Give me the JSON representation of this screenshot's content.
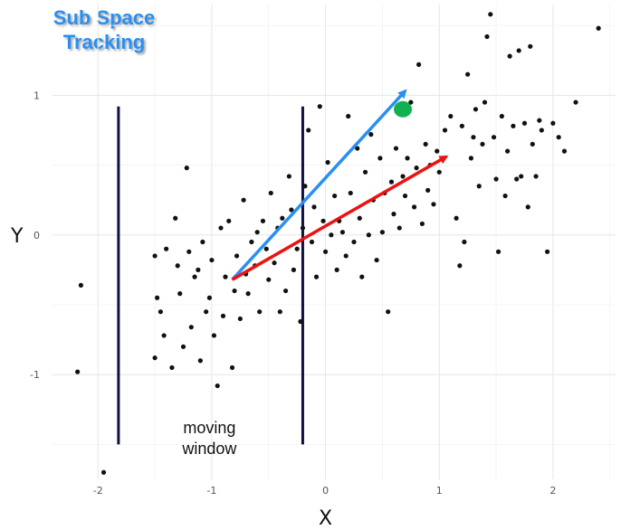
{
  "chart_data": {
    "type": "scatter",
    "title": "Sub Space Tracking",
    "xlabel": "X",
    "ylabel": "Y",
    "xlim": [
      -2.4,
      2.55
    ],
    "ylim": [
      -1.75,
      1.65
    ],
    "x_ticks": [
      -2,
      -1,
      0,
      1,
      2
    ],
    "y_ticks": [
      -1,
      0,
      1
    ],
    "grid": true,
    "annotation_text": "moving\nwindow",
    "colors": {
      "points": "#111111",
      "blue_arrow": "#2a8ff0",
      "red_arrow": "#ee1111",
      "green_point": "#11b050",
      "window_lines": "#101040",
      "title": "#2a8ff0"
    },
    "window_lines": [
      {
        "x": -1.82,
        "y_top": 0.92,
        "y_bottom": -1.5
      },
      {
        "x": -0.2,
        "y_top": 0.92,
        "y_bottom": -1.5
      }
    ],
    "arrows": [
      {
        "name": "blue_arrow",
        "from": [
          -0.82,
          -0.32
        ],
        "to": [
          0.7,
          1.03
        ]
      },
      {
        "name": "red_arrow",
        "from": [
          -0.82,
          -0.32
        ],
        "to": [
          1.06,
          0.56
        ]
      }
    ],
    "highlight_point": {
      "x": 0.68,
      "y": 0.9
    },
    "points": [
      [
        -2.15,
        -0.36
      ],
      [
        -2.18,
        -0.98
      ],
      [
        -1.95,
        -1.7
      ],
      [
        -1.5,
        -0.15
      ],
      [
        -1.48,
        -0.45
      ],
      [
        -1.5,
        -0.88
      ],
      [
        -1.45,
        -0.55
      ],
      [
        -1.42,
        -0.72
      ],
      [
        -1.4,
        -0.1
      ],
      [
        -1.35,
        -0.95
      ],
      [
        -1.32,
        0.12
      ],
      [
        -1.3,
        -0.22
      ],
      [
        -1.28,
        -0.42
      ],
      [
        -1.25,
        -0.8
      ],
      [
        -1.22,
        0.48
      ],
      [
        -1.2,
        -0.12
      ],
      [
        -1.18,
        -0.66
      ],
      [
        -1.15,
        -0.3
      ],
      [
        -1.12,
        -0.25
      ],
      [
        -1.1,
        -0.9
      ],
      [
        -1.08,
        -0.05
      ],
      [
        -1.05,
        -0.55
      ],
      [
        -1.02,
        -0.45
      ],
      [
        -1.0,
        -0.18
      ],
      [
        -0.98,
        -0.72
      ],
      [
        -0.95,
        -1.08
      ],
      [
        -0.92,
        0.05
      ],
      [
        -0.9,
        -0.58
      ],
      [
        -0.88,
        -0.3
      ],
      [
        -0.85,
        0.1
      ],
      [
        -0.82,
        -0.95
      ],
      [
        -0.8,
        -0.4
      ],
      [
        -0.78,
        -0.15
      ],
      [
        -0.75,
        -0.6
      ],
      [
        -0.72,
        0.25
      ],
      [
        -0.7,
        -0.28
      ],
      [
        -0.68,
        -0.42
      ],
      [
        -0.65,
        -0.05
      ],
      [
        -0.62,
        -0.22
      ],
      [
        -0.6,
        0.02
      ],
      [
        -0.58,
        -0.55
      ],
      [
        -0.55,
        0.1
      ],
      [
        -0.52,
        -0.1
      ],
      [
        -0.5,
        -0.32
      ],
      [
        -0.48,
        0.3
      ],
      [
        -0.45,
        -0.2
      ],
      [
        -0.42,
        0.05
      ],
      [
        -0.4,
        -0.55
      ],
      [
        -0.38,
        0.12
      ],
      [
        -0.35,
        -0.4
      ],
      [
        -0.32,
        0.42
      ],
      [
        -0.3,
        0.18
      ],
      [
        -0.28,
        -0.25
      ],
      [
        -0.25,
        -0.1
      ],
      [
        -0.22,
        -0.62
      ],
      [
        -0.2,
        0.05
      ],
      [
        -0.18,
        0.35
      ],
      [
        -0.15,
        0.75
      ],
      [
        -0.12,
        -0.05
      ],
      [
        -0.1,
        0.2
      ],
      [
        -0.08,
        -0.3
      ],
      [
        -0.05,
        0.92
      ],
      [
        -0.02,
        0.1
      ],
      [
        0.0,
        -0.12
      ],
      [
        0.02,
        0.52
      ],
      [
        0.05,
        0.0
      ],
      [
        0.08,
        0.28
      ],
      [
        0.1,
        -0.25
      ],
      [
        0.12,
        0.1
      ],
      [
        0.15,
        0.02
      ],
      [
        0.18,
        -0.15
      ],
      [
        0.2,
        0.85
      ],
      [
        0.22,
        0.3
      ],
      [
        0.25,
        -0.05
      ],
      [
        0.28,
        0.62
      ],
      [
        0.3,
        0.12
      ],
      [
        0.32,
        -0.3
      ],
      [
        0.35,
        0.45
      ],
      [
        0.38,
        0.0
      ],
      [
        0.4,
        0.72
      ],
      [
        0.42,
        0.25
      ],
      [
        0.45,
        -0.18
      ],
      [
        0.48,
        0.55
      ],
      [
        0.5,
        0.02
      ],
      [
        0.52,
        0.3
      ],
      [
        0.55,
        -0.55
      ],
      [
        0.58,
        0.38
      ],
      [
        0.6,
        0.15
      ],
      [
        0.62,
        0.62
      ],
      [
        0.65,
        0.05
      ],
      [
        0.68,
        0.42
      ],
      [
        0.7,
        0.28
      ],
      [
        0.72,
        0.55
      ],
      [
        0.75,
        0.95
      ],
      [
        0.78,
        0.2
      ],
      [
        0.8,
        0.48
      ],
      [
        0.82,
        1.22
      ],
      [
        0.85,
        0.08
      ],
      [
        0.88,
        0.65
      ],
      [
        0.9,
        0.32
      ],
      [
        0.92,
        0.5
      ],
      [
        0.95,
        0.22
      ],
      [
        0.98,
        0.6
      ],
      [
        1.0,
        0.45
      ],
      [
        1.05,
        0.75
      ],
      [
        1.1,
        0.85
      ],
      [
        1.15,
        0.12
      ],
      [
        1.18,
        -0.22
      ],
      [
        1.2,
        0.78
      ],
      [
        1.22,
        -0.05
      ],
      [
        1.25,
        1.15
      ],
      [
        1.28,
        0.55
      ],
      [
        1.3,
        0.7
      ],
      [
        1.32,
        0.9
      ],
      [
        1.35,
        0.35
      ],
      [
        1.38,
        0.65
      ],
      [
        1.4,
        0.95
      ],
      [
        1.42,
        1.42
      ],
      [
        1.45,
        1.58
      ],
      [
        1.48,
        0.7
      ],
      [
        1.5,
        0.4
      ],
      [
        1.52,
        -0.12
      ],
      [
        1.55,
        0.85
      ],
      [
        1.58,
        0.28
      ],
      [
        1.6,
        0.6
      ],
      [
        1.62,
        1.28
      ],
      [
        1.65,
        0.78
      ],
      [
        1.68,
        0.4
      ],
      [
        1.7,
        1.32
      ],
      [
        1.72,
        0.42
      ],
      [
        1.75,
        0.8
      ],
      [
        1.78,
        0.2
      ],
      [
        1.8,
        1.35
      ],
      [
        1.82,
        0.65
      ],
      [
        1.85,
        0.42
      ],
      [
        1.88,
        0.82
      ],
      [
        1.9,
        0.75
      ],
      [
        1.95,
        -0.12
      ],
      [
        2.0,
        0.8
      ],
      [
        2.05,
        0.7
      ],
      [
        2.1,
        0.6
      ],
      [
        2.2,
        0.95
      ],
      [
        2.4,
        1.48
      ]
    ]
  }
}
